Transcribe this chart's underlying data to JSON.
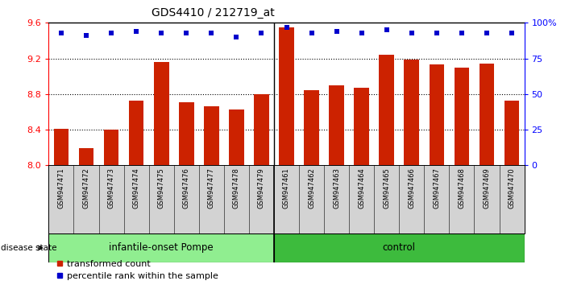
{
  "title": "GDS4410 / 212719_at",
  "samples": [
    "GSM947471",
    "GSM947472",
    "GSM947473",
    "GSM947474",
    "GSM947475",
    "GSM947476",
    "GSM947477",
    "GSM947478",
    "GSM947479",
    "GSM947461",
    "GSM947462",
    "GSM947463",
    "GSM947464",
    "GSM947465",
    "GSM947466",
    "GSM947467",
    "GSM947468",
    "GSM947469",
    "GSM947470"
  ],
  "transformed_count": [
    8.41,
    8.19,
    8.4,
    8.73,
    9.16,
    8.71,
    8.66,
    8.63,
    8.8,
    9.55,
    8.84,
    8.9,
    8.87,
    9.24,
    9.19,
    9.13,
    9.1,
    9.14,
    8.73
  ],
  "percentile_rank": [
    93,
    91,
    93,
    94,
    93,
    93,
    93,
    90,
    93,
    97,
    93,
    94,
    93,
    95,
    93,
    93,
    93,
    93,
    93
  ],
  "groups": [
    {
      "name": "infantile-onset Pompe",
      "start": 0,
      "end": 9,
      "color": "#90EE90"
    },
    {
      "name": "control",
      "start": 9,
      "end": 19,
      "color": "#3dbb3d"
    }
  ],
  "bar_color": "#CC2200",
  "dot_color": "#0000CC",
  "ylim_left": [
    8.0,
    9.6
  ],
  "ylim_right": [
    0,
    100
  ],
  "yticks_left": [
    8.0,
    8.4,
    8.8,
    9.2,
    9.6
  ],
  "yticks_right": [
    0,
    25,
    50,
    75,
    100
  ],
  "ytick_labels_right": [
    "0",
    "25",
    "50",
    "75",
    "100%"
  ],
  "grid_values": [
    8.4,
    8.8,
    9.2
  ],
  "disease_state_label": "disease state",
  "legend": [
    "transformed count",
    "percentile rank within the sample"
  ],
  "tick_bg_color": "#d3d3d3",
  "bar_width": 0.6
}
